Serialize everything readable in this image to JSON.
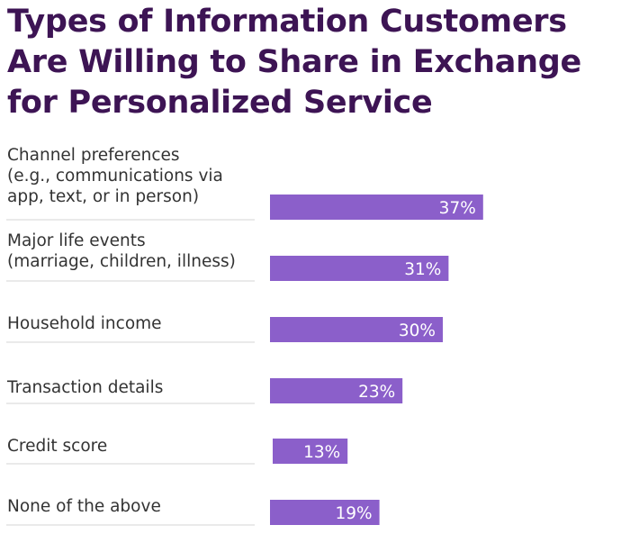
{
  "chart_data": {
    "type": "bar",
    "orientation": "horizontal",
    "title": "Types of Information Customers Are Willing to Share in Exchange for Personalized Service",
    "categories": [
      [
        "Channel preferences",
        "(e.g., communications via",
        "app, text, or in person)"
      ],
      [
        "Major life events",
        "(marriage, children, illness)"
      ],
      [
        "Household income"
      ],
      [
        "Transaction details"
      ],
      [
        "Credit score"
      ],
      [
        "None of the above"
      ]
    ],
    "values": [
      37,
      31,
      30,
      23,
      13,
      19
    ],
    "value_labels": [
      "37%",
      "31%",
      "30%",
      "23%",
      "13%",
      "19%"
    ],
    "xlabel": "",
    "ylabel": "",
    "xlim": [
      0,
      40
    ],
    "grid": false,
    "legend": "none",
    "colors": {
      "title": "#3d1454",
      "bar": "#8b5fca",
      "label": "#333333",
      "value_text": "#ffffff",
      "divider": "#d6d6d6"
    }
  }
}
